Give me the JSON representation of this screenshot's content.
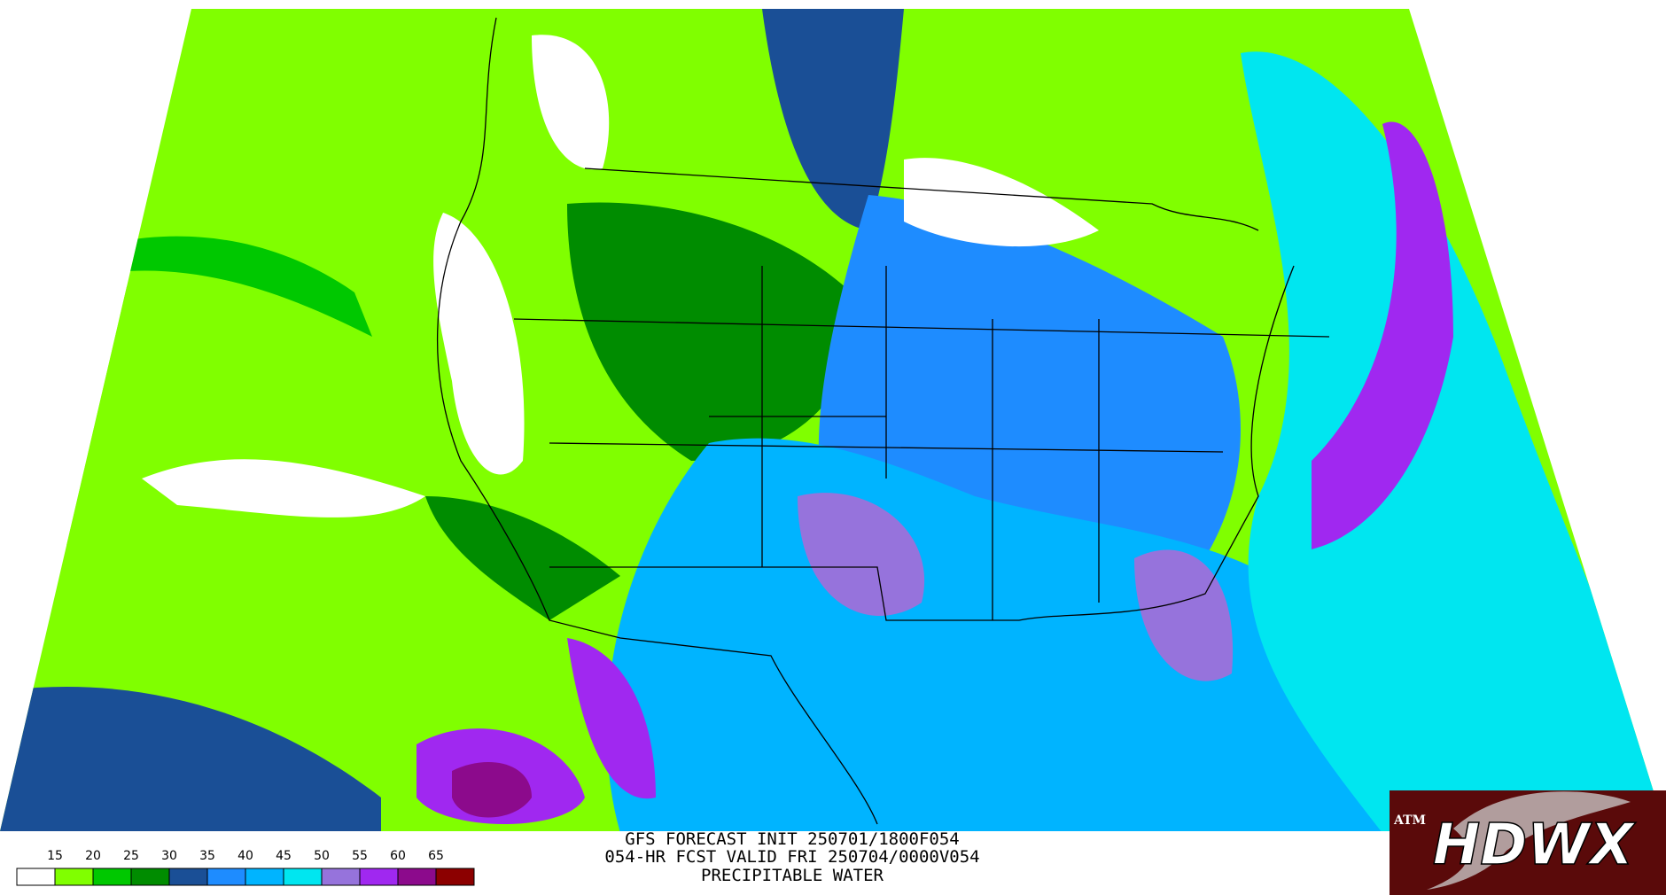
{
  "header": {
    "lines": [
      "GFS FORECAST INIT 250701/1800F054",
      "054-HR FCST VALID FRI 250704/0000V054",
      "PRECIPITABLE WATER"
    ]
  },
  "legend": {
    "labels": [
      15,
      20,
      25,
      30,
      35,
      40,
      45,
      50,
      55,
      60,
      65
    ],
    "colors": [
      "#ffffff",
      "#80ff00",
      "#00c800",
      "#008c00",
      "#1a4f96",
      "#1e8cff",
      "#00b4ff",
      "#00e6f0",
      "#9673dc",
      "#a028f0",
      "#8c0a8c",
      "#8c0000"
    ]
  },
  "logo": {
    "emblem": "ATM",
    "name": "HDWX"
  }
}
